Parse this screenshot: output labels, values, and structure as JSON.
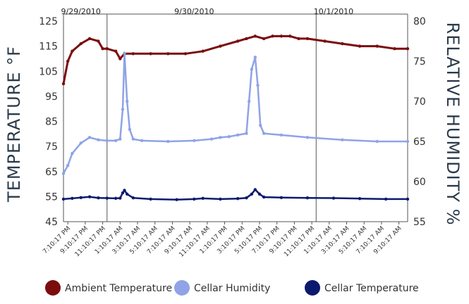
{
  "chart_data": {
    "type": "line",
    "ylabel_left": "TEMPERATURE °F",
    "ylabel_right": "RELATIVE HUMIDITY %",
    "ylim_left": [
      45,
      125
    ],
    "ylim_right": [
      55,
      80
    ],
    "yticks_left": [
      "45",
      "55",
      "65",
      "75",
      "85",
      "95",
      "105",
      "115",
      "125"
    ],
    "yticks_right": [
      "55",
      "60",
      "65",
      "70",
      "75",
      "80"
    ],
    "x_tick_labels": [
      "7:10:17 PM",
      "9:10:17 PM",
      "11:10:17 PM",
      "1:10:17 AM",
      "3:10:17 AM",
      "5:10:17 AM",
      "7:10:17 AM",
      "9:10:17 AM",
      "11:10:17 AM",
      "1:10:17 PM",
      "3:10:17 PM",
      "5:10:17 PM",
      "7:10:17 PM",
      "9:10:17 PM",
      "11:10:17 PM",
      "1:10:17 AM",
      "3:10:17 AM",
      "5:10:17 AM",
      "7:10:17 AM",
      "9:10:17 AM"
    ],
    "date_labels": [
      {
        "label": "9/29/2010",
        "hour": 2.0
      },
      {
        "label": "9/30/2010",
        "hour": 15.0
      },
      {
        "label": "10/1/2010",
        "hour": 31.0
      }
    ],
    "day_boundaries_hours": [
      5.0,
      29.0
    ],
    "x_range_hours": [
      0,
      39.5
    ],
    "grid": false,
    "legend_position": "bottom",
    "series": [
      {
        "name": "Ambient Temperature",
        "axis": "left",
        "color": "#7b0d0d",
        "x_hours": [
          0,
          0.5,
          1,
          2,
          3,
          4,
          4.5,
          5,
          6,
          6.5,
          7,
          8,
          10,
          12,
          14,
          16,
          18,
          20,
          21,
          22,
          23,
          24,
          25,
          26,
          27,
          28,
          30,
          32,
          34,
          36,
          38,
          39.5
        ],
        "values": [
          100,
          109,
          113,
          116,
          118,
          117,
          114,
          114,
          113,
          110,
          112,
          112,
          112,
          112,
          112,
          113,
          115,
          117,
          118,
          119,
          118,
          119,
          119,
          119,
          118,
          118,
          117,
          116,
          115,
          115,
          114,
          114
        ]
      },
      {
        "name": "Cellar Humidity",
        "axis": "right",
        "color": "#8fa3e6",
        "x_hours": [
          0,
          0.5,
          1,
          2,
          3,
          4,
          5,
          6,
          6.5,
          6.8,
          7,
          7.3,
          7.6,
          8,
          9,
          12,
          15,
          17,
          18,
          19,
          20,
          21,
          21.3,
          21.6,
          22,
          22.3,
          22.6,
          23,
          25,
          28,
          32,
          36,
          39.5
        ],
        "values": [
          61.0,
          62.0,
          63.5,
          64.8,
          65.5,
          65.2,
          65.1,
          65.1,
          65.3,
          69.0,
          76.0,
          70.0,
          66.5,
          65.3,
          65.1,
          65.0,
          65.1,
          65.3,
          65.5,
          65.6,
          65.8,
          66.0,
          70.0,
          74.0,
          75.5,
          72.0,
          67.0,
          66.0,
          65.8,
          65.5,
          65.2,
          65.0,
          65.0
        ]
      },
      {
        "name": "Cellar Temperature",
        "axis": "left",
        "color": "#0c1a6e",
        "x_hours": [
          0,
          1,
          2,
          3,
          4,
          5,
          6,
          6.5,
          6.8,
          7,
          7.3,
          8,
          10,
          13,
          15,
          16,
          18,
          20,
          21,
          21.6,
          22,
          22.5,
          23,
          25,
          28,
          31,
          34,
          37,
          39.5
        ],
        "values": [
          54.0,
          54.3,
          54.6,
          54.9,
          54.5,
          54.4,
          54.3,
          54.4,
          56.5,
          57.5,
          56.0,
          54.5,
          54.0,
          53.8,
          54.0,
          54.3,
          54.0,
          54.2,
          54.5,
          56.0,
          57.8,
          56.0,
          54.8,
          54.6,
          54.5,
          54.4,
          54.2,
          54.0,
          54.0
        ]
      }
    ]
  }
}
